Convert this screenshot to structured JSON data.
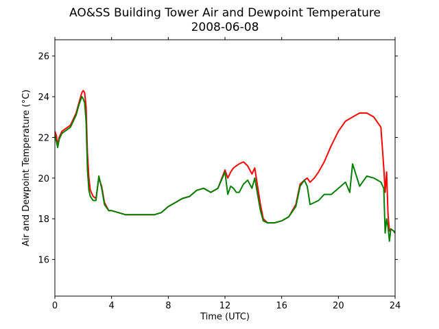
{
  "chart_data": {
    "type": "line",
    "title": "AO&SS Building Tower Air and Dewpoint Temperature",
    "subtitle": "2008-06-08",
    "xlabel": "Time (UTC)",
    "ylabel": "Air and Dewpoint Temperature (°C)",
    "xlim": [
      0,
      24
    ],
    "ylim": [
      14.2,
      26.8
    ],
    "xticks": [
      0,
      4,
      8,
      12,
      16,
      20,
      24
    ],
    "yticks": [
      16,
      18,
      20,
      22,
      24,
      26
    ],
    "grid": false,
    "legend": "none",
    "series": [
      {
        "color": "#ff0000",
        "x": [
          0,
          0.1,
          0.2,
          0.3,
          0.5,
          0.7,
          0.9,
          1.1,
          1.3,
          1.5,
          1.7,
          1.9,
          2.0,
          2.1,
          2.2,
          2.3,
          2.4,
          2.5,
          2.7,
          2.9,
          3.1,
          3.3,
          3.5,
          3.8,
          4.0,
          4.5,
          5.0,
          5.5,
          6.0,
          6.5,
          7.0,
          7.5,
          8.0,
          8.5,
          9.0,
          9.5,
          10.0,
          10.5,
          11.0,
          11.5,
          12.0,
          12.2,
          12.4,
          12.6,
          12.8,
          13.0,
          13.3,
          13.6,
          13.9,
          14.1,
          14.3,
          14.5,
          14.7,
          15.0,
          15.5,
          16.0,
          16.5,
          17.0,
          17.3,
          17.6,
          17.8,
          18.0,
          18.3,
          18.6,
          19.0,
          19.5,
          20.0,
          20.5,
          21.0,
          21.5,
          22.0,
          22.5,
          23.0,
          23.2,
          23.3,
          23.4,
          23.5,
          23.6,
          23.7,
          23.9,
          24.0
        ],
        "y": [
          22.3,
          22.1,
          21.6,
          22.0,
          22.3,
          22.4,
          22.5,
          22.6,
          22.9,
          23.2,
          23.7,
          24.2,
          24.3,
          24.2,
          23.5,
          21.2,
          20.0,
          19.4,
          19.1,
          19.0,
          20.0,
          19.6,
          18.8,
          18.4,
          18.4,
          18.3,
          18.2,
          18.2,
          18.2,
          18.2,
          18.2,
          18.3,
          18.6,
          18.8,
          19.0,
          19.1,
          19.4,
          19.5,
          19.3,
          19.5,
          20.4,
          20.0,
          20.3,
          20.5,
          20.6,
          20.7,
          20.8,
          20.6,
          20.2,
          20.5,
          19.6,
          18.7,
          18.0,
          17.8,
          17.8,
          17.9,
          18.1,
          18.7,
          19.7,
          19.9,
          20.0,
          19.8,
          20.0,
          20.3,
          20.8,
          21.6,
          22.3,
          22.8,
          23.0,
          23.2,
          23.2,
          23.0,
          22.5,
          20.5,
          19.3,
          20.3,
          18.2,
          17.4,
          17.5,
          17.4,
          17.3
        ]
      },
      {
        "color": "#008000",
        "x": [
          0,
          0.1,
          0.2,
          0.3,
          0.5,
          0.7,
          0.9,
          1.1,
          1.3,
          1.5,
          1.7,
          1.9,
          2.0,
          2.1,
          2.2,
          2.3,
          2.4,
          2.5,
          2.7,
          2.9,
          3.1,
          3.3,
          3.5,
          3.8,
          4.0,
          4.5,
          5.0,
          5.5,
          6.0,
          6.5,
          7.0,
          7.5,
          8.0,
          8.5,
          9.0,
          9.5,
          10.0,
          10.5,
          11.0,
          11.5,
          12.0,
          12.2,
          12.4,
          12.6,
          12.8,
          13.0,
          13.3,
          13.6,
          13.9,
          14.1,
          14.3,
          14.5,
          14.7,
          15.0,
          15.5,
          16.0,
          16.5,
          17.0,
          17.3,
          17.6,
          17.8,
          18.0,
          18.3,
          18.6,
          19.0,
          19.5,
          20.0,
          20.5,
          20.8,
          21.0,
          21.5,
          22.0,
          22.5,
          23.0,
          23.2,
          23.3,
          23.4,
          23.5,
          23.6,
          23.7,
          23.9,
          24.0
        ],
        "y": [
          22.1,
          21.8,
          21.5,
          21.9,
          22.2,
          22.3,
          22.4,
          22.5,
          22.8,
          23.1,
          23.6,
          24.0,
          23.9,
          23.7,
          22.8,
          20.4,
          19.4,
          19.1,
          18.9,
          18.9,
          20.1,
          19.5,
          18.7,
          18.4,
          18.4,
          18.3,
          18.2,
          18.2,
          18.2,
          18.2,
          18.2,
          18.3,
          18.6,
          18.8,
          19.0,
          19.1,
          19.4,
          19.5,
          19.3,
          19.5,
          20.3,
          19.2,
          19.6,
          19.5,
          19.3,
          19.3,
          19.7,
          19.9,
          19.5,
          20.0,
          19.2,
          18.4,
          17.9,
          17.8,
          17.8,
          17.9,
          18.1,
          18.6,
          19.6,
          19.9,
          19.6,
          18.7,
          18.8,
          18.9,
          19.2,
          19.2,
          19.5,
          19.8,
          19.3,
          20.7,
          19.6,
          20.1,
          20.0,
          19.8,
          19.5,
          17.3,
          18.0,
          17.6,
          16.9,
          17.5,
          17.4,
          17.3
        ]
      }
    ]
  }
}
